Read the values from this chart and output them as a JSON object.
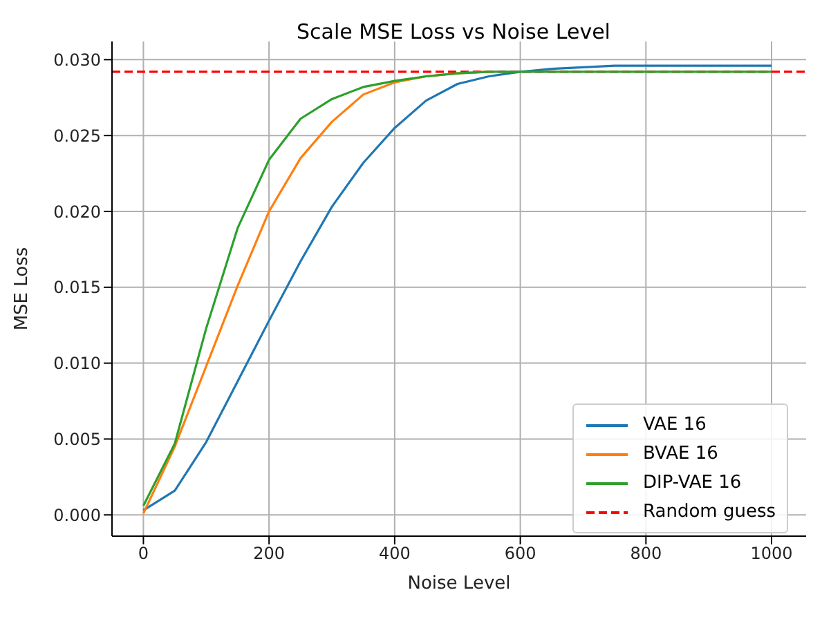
{
  "chart_data": {
    "type": "line",
    "title": "Scale MSE Loss vs Noise Level",
    "xlabel": "Noise Level",
    "ylabel": "MSE Loss",
    "x": [
      0,
      50,
      100,
      150,
      200,
      250,
      300,
      350,
      400,
      450,
      500,
      550,
      600,
      650,
      700,
      750,
      800,
      850,
      900,
      950,
      1000
    ],
    "series": [
      {
        "name": "VAE 16",
        "color": "#1f77b4",
        "values": [
          0.0003,
          0.0016,
          0.0048,
          0.0088,
          0.0128,
          0.0167,
          0.0203,
          0.0232,
          0.0255,
          0.0273,
          0.0284,
          0.0289,
          0.0292,
          0.0294,
          0.0295,
          0.0296,
          0.0296,
          0.0296,
          0.0296,
          0.0296,
          0.0296
        ]
      },
      {
        "name": "BVAE 16",
        "color": "#ff7f0e",
        "values": [
          0.0001,
          0.0045,
          0.0098,
          0.0151,
          0.02,
          0.0235,
          0.0259,
          0.0277,
          0.0285,
          0.0289,
          0.0291,
          0.0292,
          null,
          null,
          null,
          null,
          null,
          null,
          null,
          null,
          null
        ]
      },
      {
        "name": "DIP-VAE 16",
        "color": "#2ca02c",
        "values": [
          0.0006,
          0.0047,
          0.0123,
          0.0189,
          0.0234,
          0.0261,
          0.0274,
          0.0282,
          0.0286,
          0.0289,
          0.0291,
          0.0292,
          0.0292,
          0.0292,
          0.0292,
          0.0292,
          0.0292,
          0.0292,
          0.0292,
          0.0292,
          0.0292
        ]
      }
    ],
    "ref_lines": [
      {
        "axis": "y",
        "value": 0.0292,
        "label": "Random guess",
        "color": "#ff0000",
        "line_style": "dashed"
      }
    ],
    "xlim": [
      -50,
      1055
    ],
    "xticks": [
      0,
      200,
      400,
      600,
      800,
      1000
    ],
    "ylim": [
      -0.0014,
      0.0312
    ],
    "yticks": [
      {
        "value": 0,
        "label": "0.000"
      },
      {
        "value": 0.005,
        "label": "0.005"
      },
      {
        "value": 0.01,
        "label": "0.010"
      },
      {
        "value": 0.015,
        "label": "0.015"
      },
      {
        "value": 0.02,
        "label": "0.020"
      },
      {
        "value": 0.025,
        "label": "0.025"
      },
      {
        "value": 0.03,
        "label": "0.030"
      }
    ],
    "grid": true,
    "legend": "bottom right",
    "marker": "none",
    "line_style": "solid"
  }
}
